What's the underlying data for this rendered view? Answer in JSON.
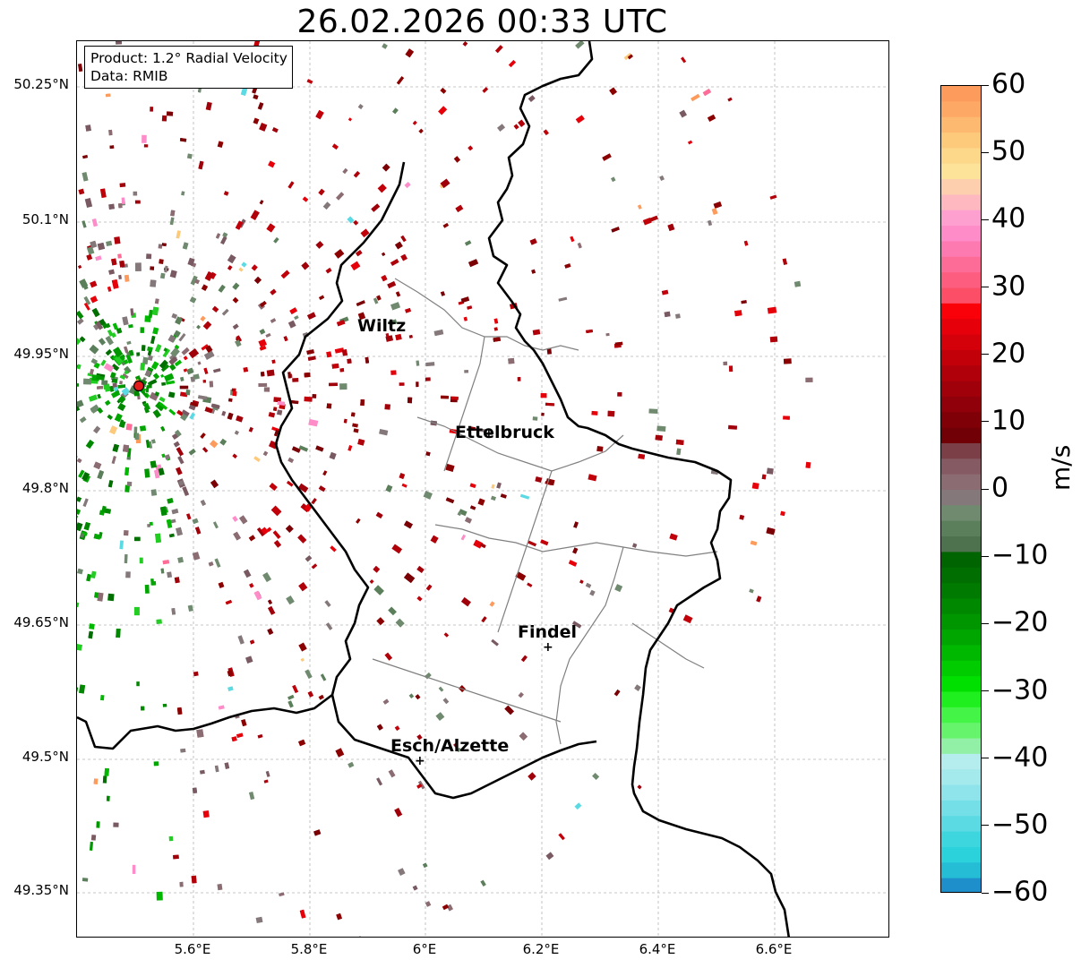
{
  "title": "26.02.2026 00:33 UTC",
  "info": {
    "product": "Product: 1.2° Radial Velocity",
    "source": "Data: RMIB"
  },
  "axes": {
    "lat_ticks": [
      "50.25°N",
      "50.1°N",
      "49.95°N",
      "49.8°N",
      "49.65°N",
      "49.5°N",
      "49.35°N"
    ],
    "lon_ticks": [
      "5.6°E",
      "5.8°E",
      "6°E",
      "6.2°E",
      "6.4°E",
      "6.6°E"
    ]
  },
  "places": [
    {
      "name": "Wiltz"
    },
    {
      "name": "Ettelbruck"
    },
    {
      "name": "Findel"
    },
    {
      "name": "Esch/Alzette"
    }
  ],
  "colorbar": {
    "unit": "m/s",
    "min": -60,
    "max": 60,
    "ticks": [
      "60",
      "50",
      "40",
      "30",
      "20",
      "10",
      "0",
      "−10",
      "−20",
      "−30",
      "−40",
      "−50",
      "−60"
    ]
  },
  "colors": {
    "radar_site": "#e31a1c",
    "border": "#000000",
    "district": "#808080"
  }
}
